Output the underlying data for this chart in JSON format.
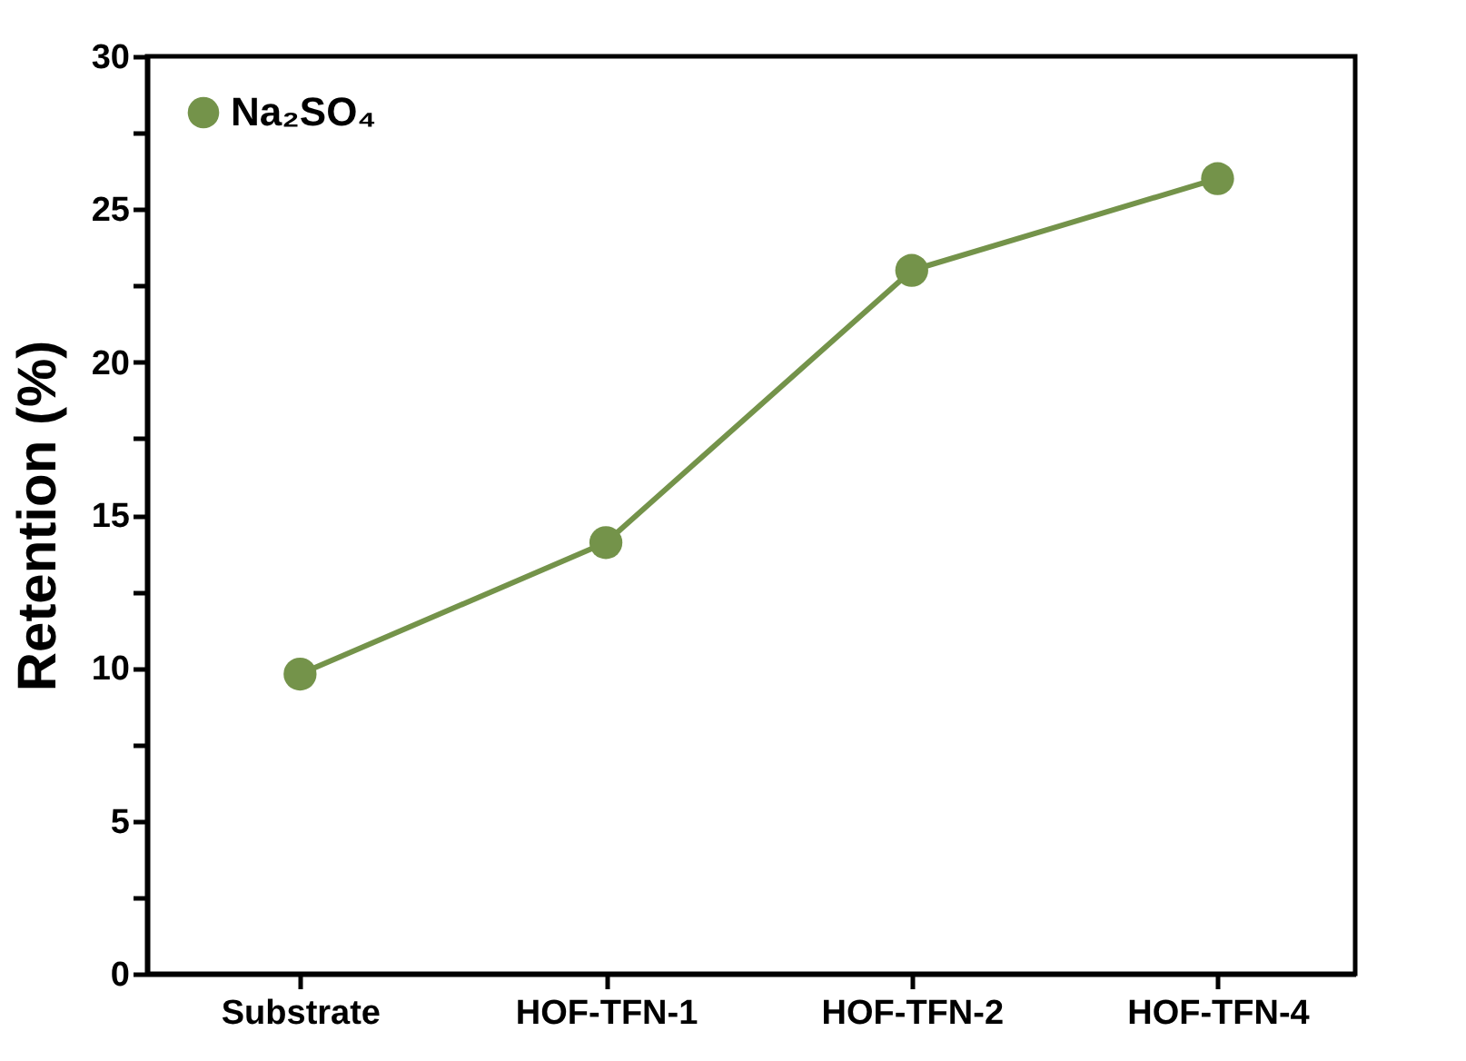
{
  "chart_data": {
    "type": "line",
    "ylabel": "Retention (%)",
    "categories": [
      "Substrate",
      "HOF-TFN-1",
      "HOF-TFN-2",
      "HOF-TFN-4"
    ],
    "series": [
      {
        "name": "Na₂SO₄",
        "color": "#74934a",
        "values": [
          9.8,
          14.1,
          23.0,
          26.0
        ]
      }
    ],
    "ylim": [
      0,
      30
    ],
    "yticks": [
      0,
      {
        "value": 2.5,
        "label": null
      },
      5,
      {
        "value": 7.5,
        "label": null
      },
      10,
      {
        "value": 12.5,
        "label": null
      },
      15,
      {
        "value": 17.5,
        "label": null
      },
      20,
      {
        "value": 22.5,
        "label": null
      },
      25,
      {
        "value": 27.5,
        "label": null
      },
      30
    ],
    "marker": "circle",
    "line_style": "solid",
    "legend": "top left",
    "grid": false
  }
}
